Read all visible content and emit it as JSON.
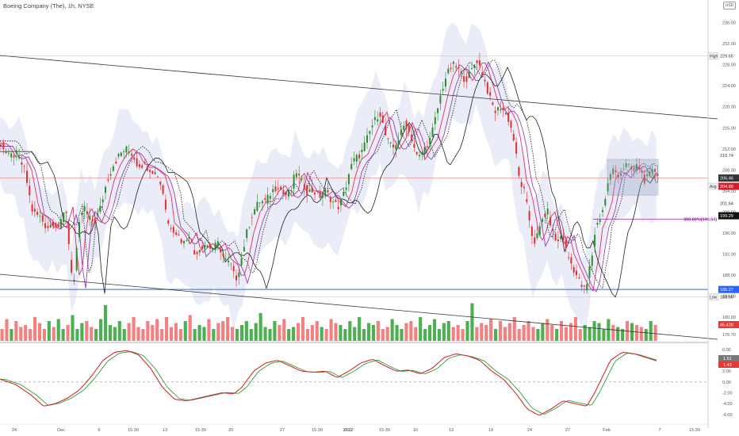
{
  "header": {
    "title": "Boeing Company (The), 1h, NYSE",
    "currency": "USD"
  },
  "colors": {
    "bull": "#2e8b2e",
    "bear": "#e03030",
    "vol_bull": "#4caf50",
    "vol_bear": "#f48080",
    "band": "#e6e9f6",
    "ema_fast": "#e0306b",
    "ema_slow": "#9b3fb5",
    "sma": "#222222",
    "support": "#2962ff",
    "resistance": "#f08080",
    "macd": "#d32f2f",
    "signal": "#2e9e3e",
    "fib": "#9b2fae"
  },
  "chart_data": {
    "type": "candlestick",
    "symbol": "Boeing Company (The)",
    "interval": "1h",
    "exchange": "NYSE",
    "price_axis": {
      "ticks": [
        "236.00",
        "232.00",
        "228.00",
        "224.00",
        "220.00",
        "216.00",
        "212.00",
        "208.00",
        "204.00",
        "200.00",
        "196.00",
        "192.00",
        "188.00",
        "184.00",
        "180.00",
        "176.70"
      ],
      "ylim": [
        175.5,
        238.5
      ]
    },
    "time_axis": {
      "labels": [
        "24",
        "Dec",
        "6",
        "15:30",
        "13",
        "15:30",
        "20",
        "27",
        "15:30",
        "2022",
        "15:30",
        "10",
        "13",
        "19",
        "24",
        "27",
        "Feb",
        "7",
        "15:30"
      ]
    },
    "price_labels": [
      {
        "label": "High",
        "value": "229.65"
      },
      {
        "label": "",
        "value": "210.74"
      },
      {
        "label": "",
        "value": "206.46"
      },
      {
        "label": "Avg",
        "value": "204.89"
      },
      {
        "label": "",
        "value": "201.64"
      },
      {
        "label": "",
        "value": "199.29"
      },
      {
        "label": "",
        "value": "185.27"
      },
      {
        "label": "Low",
        "value": "183.86"
      }
    ],
    "volume_badge": "45.42K",
    "fib_label": "388.80%(198.64)",
    "support_level": 185.27,
    "high_level": 229.65,
    "low_level": 183.86,
    "last_price": 206.46,
    "range_box": {
      "top": 210.0,
      "bottom": 203.2
    },
    "macd_axis": {
      "ticks": [
        "6.00",
        "4.00",
        "2.00",
        "0.00",
        "-2.00",
        "-4.00",
        "-6.00"
      ],
      "ylim": [
        -7.5,
        7.0
      ]
    },
    "macd_badges": [
      "1.51",
      "1.43"
    ],
    "price_path": [
      [
        0,
        213
      ],
      [
        10,
        210.5
      ],
      [
        20,
        211
      ],
      [
        30,
        208
      ],
      [
        40,
        200
      ],
      [
        50,
        199
      ],
      [
        58,
        197
      ],
      [
        66,
        198
      ],
      [
        74,
        197
      ],
      [
        82,
        201
      ],
      [
        88,
        190
      ],
      [
        92,
        186
      ],
      [
        96,
        193
      ],
      [
        100,
        199
      ],
      [
        105,
        201
      ],
      [
        110,
        199
      ],
      [
        118,
        198
      ],
      [
        126,
        201
      ],
      [
        134,
        206
      ],
      [
        142,
        209
      ],
      [
        150,
        211
      ],
      [
        158,
        212
      ],
      [
        166,
        211
      ],
      [
        172,
        209
      ],
      [
        180,
        209
      ],
      [
        190,
        208
      ],
      [
        198,
        207
      ],
      [
        206,
        203
      ],
      [
        210,
        198
      ],
      [
        216,
        197
      ],
      [
        222,
        196
      ],
      [
        230,
        194
      ],
      [
        238,
        196
      ],
      [
        244,
        192
      ],
      [
        250,
        193
      ],
      [
        258,
        194
      ],
      [
        266,
        193
      ],
      [
        274,
        194
      ],
      [
        282,
        191
      ],
      [
        290,
        190
      ],
      [
        296,
        187
      ],
      [
        302,
        190
      ],
      [
        310,
        196
      ],
      [
        318,
        200
      ],
      [
        326,
        202
      ],
      [
        334,
        202
      ],
      [
        342,
        204
      ],
      [
        350,
        205
      ],
      [
        358,
        203
      ],
      [
        366,
        204
      ],
      [
        372,
        208
      ],
      [
        378,
        206
      ],
      [
        386,
        204
      ],
      [
        394,
        204
      ],
      [
        402,
        203
      ],
      [
        410,
        204
      ],
      [
        418,
        202
      ],
      [
        426,
        201
      ],
      [
        434,
        204
      ],
      [
        440,
        208
      ],
      [
        446,
        210
      ],
      [
        454,
        211
      ],
      [
        462,
        214
      ],
      [
        470,
        217
      ],
      [
        478,
        219
      ],
      [
        486,
        214
      ],
      [
        494,
        212
      ],
      [
        502,
        214
      ],
      [
        510,
        217
      ],
      [
        518,
        214
      ],
      [
        526,
        210
      ],
      [
        534,
        212
      ],
      [
        542,
        214
      ],
      [
        550,
        219
      ],
      [
        556,
        223
      ],
      [
        562,
        226
      ],
      [
        570,
        228
      ],
      [
        578,
        227
      ],
      [
        586,
        225
      ],
      [
        594,
        227
      ],
      [
        600,
        229
      ],
      [
        606,
        227
      ],
      [
        612,
        224
      ],
      [
        618,
        221
      ],
      [
        624,
        219
      ],
      [
        630,
        220
      ],
      [
        636,
        219
      ],
      [
        642,
        217
      ],
      [
        648,
        213
      ],
      [
        654,
        206
      ],
      [
        660,
        204
      ],
      [
        666,
        199
      ],
      [
        672,
        194
      ],
      [
        678,
        196
      ],
      [
        684,
        199
      ],
      [
        690,
        200
      ],
      [
        696,
        196
      ],
      [
        702,
        194
      ],
      [
        708,
        196
      ],
      [
        714,
        192
      ],
      [
        720,
        190
      ],
      [
        726,
        188
      ],
      [
        732,
        186
      ],
      [
        738,
        185
      ],
      [
        742,
        189
      ],
      [
        746,
        192
      ],
      [
        750,
        197
      ],
      [
        756,
        199
      ],
      [
        762,
        202
      ],
      [
        766,
        206
      ],
      [
        772,
        208
      ],
      [
        780,
        207
      ],
      [
        788,
        209
      ],
      [
        796,
        208
      ],
      [
        804,
        209
      ],
      [
        812,
        206
      ],
      [
        818,
        207
      ],
      [
        824,
        208
      ],
      [
        830,
        207
      ]
    ],
    "volume_bars": [
      0.3,
      0.55,
      0.3,
      0.5,
      0.35,
      0.4,
      0.3,
      0.6,
      0.45,
      0.3,
      0.5,
      0.35,
      0.55,
      0.3,
      0.4,
      0.65,
      0.3,
      0.45,
      0.5,
      0.35,
      0.3,
      0.55,
      0.9,
      0.4,
      0.35,
      0.5,
      0.3,
      0.45,
      0.6,
      0.35,
      0.3,
      0.5,
      0.4,
      0.55,
      0.3,
      0.6,
      0.35,
      0.45,
      0.3,
      0.5,
      0.65,
      0.3,
      0.4,
      0.35,
      0.55,
      0.3,
      0.45,
      0.5,
      0.6,
      0.35,
      0.3,
      0.4,
      0.5,
      0.3,
      0.45,
      0.7,
      0.35,
      0.3,
      0.5,
      0.4,
      0.55,
      0.3,
      0.35,
      0.45,
      0.6,
      0.3,
      0.4,
      0.5,
      0.35,
      0.3,
      0.55,
      0.45,
      0.4,
      0.3,
      0.5,
      0.35,
      0.6,
      0.3,
      0.45,
      0.4,
      0.5,
      0.3,
      0.35,
      0.55,
      0.4,
      0.3,
      0.45,
      0.5,
      0.35,
      0.6,
      0.3,
      0.4,
      0.55,
      0.3,
      0.45,
      0.5,
      0.35,
      0.4,
      0.3,
      0.5,
      0.95,
      0.35,
      0.45,
      0.4,
      0.55,
      0.3,
      0.5,
      0.35,
      0.45,
      0.6,
      0.3,
      0.4,
      0.5,
      0.35,
      0.3,
      0.45,
      0.55,
      0.4,
      0.3,
      0.5,
      0.35,
      0.45,
      0.6,
      0.3,
      0.4,
      0.35,
      0.5,
      0.45,
      0.3,
      0.55,
      0.4,
      0.35,
      0.3,
      0.5,
      0.45,
      0.4,
      0.35,
      0.3,
      0.5,
      0.4
    ],
    "macd_path": [
      [
        0,
        0.5
      ],
      [
        20,
        -0.5
      ],
      [
        40,
        -2.5
      ],
      [
        55,
        -4.5
      ],
      [
        70,
        -4
      ],
      [
        85,
        -3
      ],
      [
        100,
        -1.5
      ],
      [
        115,
        1
      ],
      [
        130,
        4
      ],
      [
        145,
        5.5
      ],
      [
        160,
        5.8
      ],
      [
        175,
        5
      ],
      [
        190,
        2.5
      ],
      [
        205,
        -1
      ],
      [
        220,
        -3.2
      ],
      [
        235,
        -3.5
      ],
      [
        250,
        -3
      ],
      [
        265,
        -2.5
      ],
      [
        280,
        -2
      ],
      [
        295,
        -2.2
      ],
      [
        305,
        -1
      ],
      [
        320,
        2
      ],
      [
        335,
        3.5
      ],
      [
        350,
        4
      ],
      [
        365,
        3
      ],
      [
        380,
        2
      ],
      [
        395,
        1.8
      ],
      [
        410,
        2
      ],
      [
        425,
        0.8
      ],
      [
        440,
        2
      ],
      [
        455,
        3.5
      ],
      [
        470,
        4.2
      ],
      [
        485,
        3
      ],
      [
        500,
        2
      ],
      [
        515,
        2.2
      ],
      [
        530,
        1.5
      ],
      [
        545,
        2.5
      ],
      [
        560,
        4.5
      ],
      [
        575,
        5.2
      ],
      [
        590,
        4.8
      ],
      [
        605,
        4
      ],
      [
        620,
        2
      ],
      [
        635,
        0.5
      ],
      [
        650,
        -2
      ],
      [
        665,
        -5
      ],
      [
        680,
        -6.2
      ],
      [
        695,
        -5
      ],
      [
        710,
        -3.5
      ],
      [
        725,
        -4
      ],
      [
        740,
        -4.5
      ],
      [
        750,
        -2
      ],
      [
        760,
        1
      ],
      [
        770,
        4
      ],
      [
        785,
        5.5
      ],
      [
        800,
        5.2
      ],
      [
        815,
        4.5
      ],
      [
        830,
        3.8
      ]
    ]
  }
}
